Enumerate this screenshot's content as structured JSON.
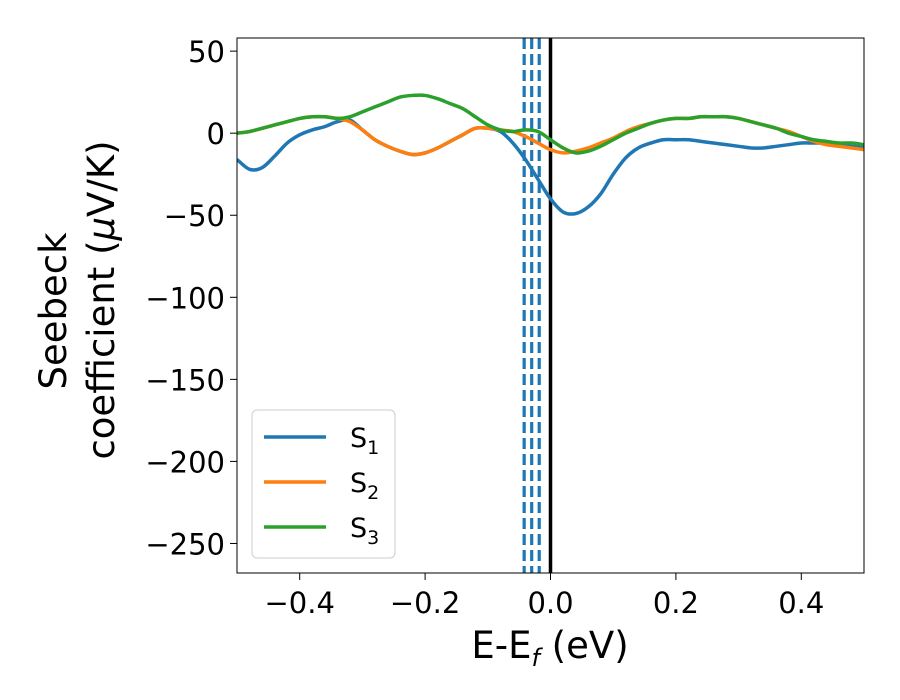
{
  "chart_data": {
    "type": "line",
    "xlabel": "E-E",
    "xlabel_sub": "f",
    "xlabel_unit": " (eV)",
    "ylabel_line1": "Seebeck",
    "ylabel_line2_pre": "coefficient  (",
    "ylabel_mu": "μ",
    "ylabel_line2_post": "V/K)",
    "xlim": [
      -0.5,
      0.5
    ],
    "ylim": [
      -268,
      58
    ],
    "x_ticks": [
      -0.4,
      -0.2,
      0.0,
      0.2,
      0.4
    ],
    "x_tick_labels": [
      "−0.4",
      "−0.2",
      "0.0",
      "0.2",
      "0.4"
    ],
    "y_ticks": [
      50,
      0,
      -50,
      -100,
      -150,
      -200,
      -250
    ],
    "y_tick_labels": [
      "50",
      "0",
      "−50",
      "−100",
      "−150",
      "−200",
      "−250"
    ],
    "grid": false,
    "legend_position": "lower-left",
    "vertical_lines": [
      {
        "x": -0.042,
        "style": "dashed",
        "color": "#1f77b4"
      },
      {
        "x": -0.03,
        "style": "dashed",
        "color": "#1f77b4"
      },
      {
        "x": -0.018,
        "style": "dashed",
        "color": "#1f77b4"
      },
      {
        "x": 0.0,
        "style": "solid",
        "color": "#000000"
      }
    ],
    "series": [
      {
        "name": "S",
        "sub": "1",
        "color": "#1f77b4",
        "x": [
          -0.5,
          -0.48,
          -0.46,
          -0.44,
          -0.42,
          -0.4,
          -0.38,
          -0.36,
          -0.34,
          -0.32,
          -0.3,
          -0.28,
          -0.26,
          -0.24,
          -0.22,
          -0.2,
          -0.18,
          -0.16,
          -0.14,
          -0.12,
          -0.1,
          -0.08,
          -0.06,
          -0.04,
          -0.02,
          0.0,
          0.02,
          0.04,
          0.06,
          0.08,
          0.1,
          0.12,
          0.14,
          0.16,
          0.18,
          0.2,
          0.22,
          0.24,
          0.26,
          0.28,
          0.3,
          0.32,
          0.34,
          0.36,
          0.38,
          0.4,
          0.42,
          0.44,
          0.46,
          0.48,
          0.5
        ],
        "y": [
          -16,
          -22,
          -21,
          -14,
          -6,
          -1,
          2,
          4,
          7,
          8,
          2,
          -4,
          -8,
          -11,
          -13,
          -12,
          -9,
          -5,
          -1,
          3,
          3,
          1,
          -6,
          -16,
          -28,
          -40,
          -48,
          -49,
          -45,
          -37,
          -25,
          -15,
          -9,
          -6,
          -4,
          -4,
          -4,
          -5,
          -6,
          -7,
          -8,
          -9,
          -9,
          -8,
          -7,
          -6,
          -6,
          -6,
          -7,
          -8,
          -9
        ]
      },
      {
        "name": "S",
        "sub": "2",
        "color": "#ff7f0e",
        "x": [
          -0.5,
          -0.48,
          -0.46,
          -0.44,
          -0.42,
          -0.4,
          -0.38,
          -0.36,
          -0.34,
          -0.32,
          -0.3,
          -0.28,
          -0.26,
          -0.24,
          -0.22,
          -0.2,
          -0.18,
          -0.16,
          -0.14,
          -0.12,
          -0.1,
          -0.08,
          -0.06,
          -0.04,
          -0.02,
          0.0,
          0.02,
          0.04,
          0.06,
          0.08,
          0.1,
          0.12,
          0.14,
          0.16,
          0.18,
          0.2,
          0.22,
          0.24,
          0.26,
          0.28,
          0.3,
          0.32,
          0.34,
          0.36,
          0.38,
          0.4,
          0.42,
          0.44,
          0.46,
          0.48,
          0.5
        ],
        "y": [
          0,
          1,
          3,
          5,
          7,
          9,
          10,
          10,
          9,
          7,
          2,
          -4,
          -8,
          -11,
          -13,
          -12,
          -9,
          -5,
          -1,
          3,
          3,
          2,
          1,
          -2,
          -6,
          -10,
          -12,
          -11,
          -9,
          -6,
          -3,
          1,
          4,
          6,
          8,
          9,
          9,
          10,
          10,
          10,
          9,
          7,
          5,
          3,
          1,
          -2,
          -5,
          -7,
          -8,
          -9,
          -10
        ]
      },
      {
        "name": "S",
        "sub": "3",
        "color": "#2ca02c",
        "x": [
          -0.5,
          -0.48,
          -0.46,
          -0.44,
          -0.42,
          -0.4,
          -0.38,
          -0.36,
          -0.34,
          -0.32,
          -0.3,
          -0.28,
          -0.26,
          -0.24,
          -0.22,
          -0.2,
          -0.18,
          -0.16,
          -0.14,
          -0.12,
          -0.1,
          -0.08,
          -0.06,
          -0.04,
          -0.02,
          0.0,
          0.02,
          0.04,
          0.06,
          0.08,
          0.1,
          0.12,
          0.14,
          0.16,
          0.18,
          0.2,
          0.22,
          0.24,
          0.26,
          0.28,
          0.3,
          0.32,
          0.34,
          0.36,
          0.38,
          0.4,
          0.42,
          0.44,
          0.46,
          0.48,
          0.5
        ],
        "y": [
          0,
          1,
          3,
          5,
          7,
          9,
          10,
          10,
          9,
          10,
          13,
          16,
          19,
          22,
          23,
          23,
          21,
          18,
          15,
          10,
          5,
          2,
          1,
          2,
          1,
          -4,
          -9,
          -12,
          -11,
          -8,
          -4,
          0,
          3,
          6,
          8,
          9,
          9,
          10,
          10,
          10,
          9,
          7,
          5,
          3,
          0,
          -2,
          -4,
          -5,
          -6,
          -6,
          -7
        ]
      }
    ]
  }
}
